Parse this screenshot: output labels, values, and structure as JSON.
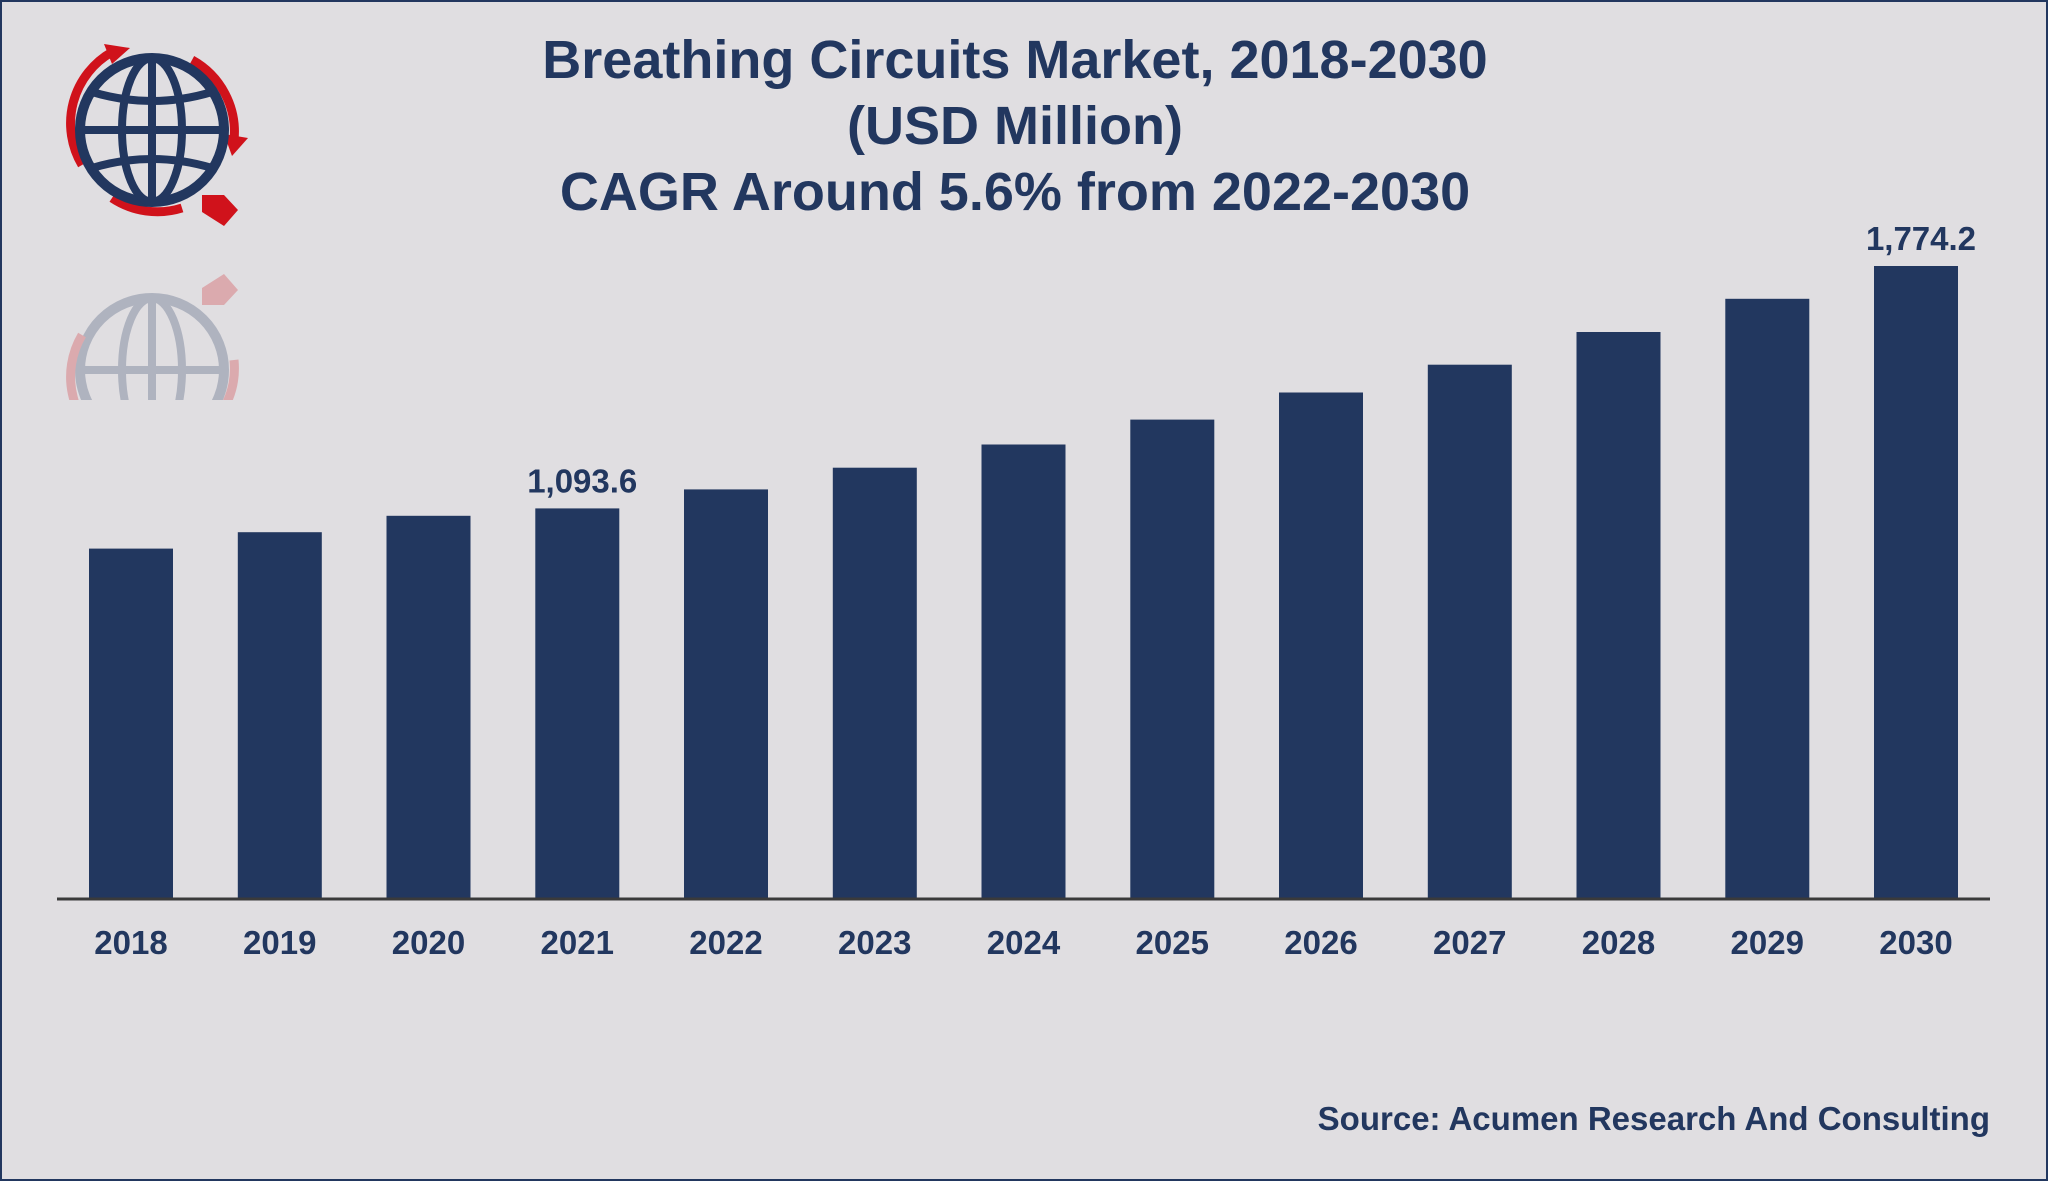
{
  "title_lines": [
    "Breathing Circuits Market, 2018-2030",
    "(USD Million)",
    "CAGR Around 5.6% from 2022-2030"
  ],
  "source": "Source: Acumen Research And Consulting",
  "colors": {
    "bar": "#22375f",
    "text": "#22375f",
    "background": "#e0dee1",
    "logo_red": "#d0121b"
  },
  "icons": {
    "logo": "globe-logo-icon"
  },
  "chart_data": {
    "type": "bar",
    "categories": [
      "2018",
      "2019",
      "2020",
      "2021",
      "2022",
      "2023",
      "2024",
      "2025",
      "2026",
      "2027",
      "2028",
      "2029",
      "2030"
    ],
    "values": [
      981,
      1027,
      1073,
      1093.6,
      1147,
      1208,
      1273,
      1343,
      1419,
      1497,
      1589,
      1682,
      1774.2
    ],
    "data_labels": [
      {
        "category": "2021",
        "text": "1,093.6"
      },
      {
        "category": "2030",
        "text": "1,774.2"
      }
    ],
    "title": "Breathing Circuits Market, 2018-2030 (USD Million)",
    "xlabel": "",
    "ylabel": "",
    "ylim": [
      0,
      1774.2
    ],
    "grid": false,
    "legend": "none"
  }
}
